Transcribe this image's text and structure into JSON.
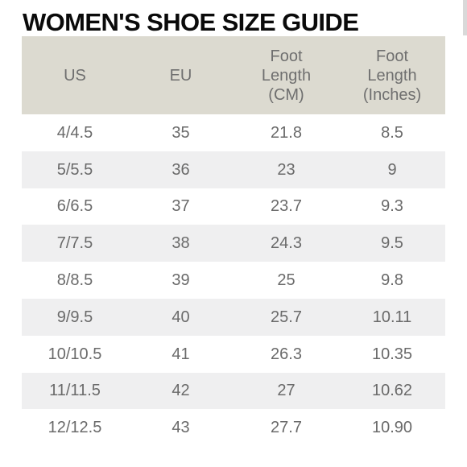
{
  "title": "WOMEN'S SHOE SIZE GUIDE",
  "headers": {
    "us": "US",
    "eu": "EU",
    "foot_cm": [
      "Foot",
      "Length",
      "(CM)"
    ],
    "foot_in": [
      "Foot",
      "Length",
      "(Inches)"
    ]
  },
  "rows": [
    {
      "us": "4/4.5",
      "eu": "35",
      "cm": "21.8",
      "in": "8.5"
    },
    {
      "us": "5/5.5",
      "eu": "36",
      "cm": "23",
      "in": "9"
    },
    {
      "us": "6/6.5",
      "eu": "37",
      "cm": "23.7",
      "in": "9.3"
    },
    {
      "us": "7/7.5",
      "eu": "38",
      "cm": "24.3",
      "in": "9.5"
    },
    {
      "us": "8/8.5",
      "eu": "39",
      "cm": "25",
      "in": "9.8"
    },
    {
      "us": "9/9.5",
      "eu": "40",
      "cm": "25.7",
      "in": "10.11"
    },
    {
      "us": "10/10.5",
      "eu": "41",
      "cm": "26.3",
      "in": "10.35"
    },
    {
      "us": "11/11.5",
      "eu": "42",
      "cm": "27",
      "in": "10.62"
    },
    {
      "us": "12/12.5",
      "eu": "43",
      "cm": "27.7",
      "in": "10.90"
    }
  ],
  "colors": {
    "header_bg": "#dcdad0",
    "alt_row_bg": "#efeff0",
    "title_color": "#0a0a0a",
    "text_color": "#6a6a6a"
  }
}
